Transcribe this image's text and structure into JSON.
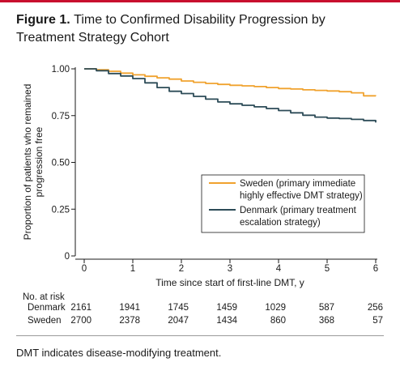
{
  "figure": {
    "title_bold": "Figure 1.",
    "title_rest": "Time to Confirmed Disability Progression by Treatment Strategy Cohort",
    "footnote": "DMT indicates disease-modifying treatment."
  },
  "colors": {
    "sweden": "#f0a22e",
    "denmark": "#2c4b57",
    "accent_rule": "#c8102e"
  },
  "chart_data": {
    "type": "line",
    "title": "Time to Confirmed Disability Progression by Treatment Strategy Cohort",
    "xlabel": "Time since start of first-line DMT, y",
    "ylabel_lines": [
      "Proportion of patients who remained",
      "progression free"
    ],
    "xlim": [
      0,
      6
    ],
    "ylim": [
      0,
      1
    ],
    "x_ticks": [
      "0",
      "1",
      "2",
      "3",
      "4",
      "5",
      "6"
    ],
    "y_ticks": [
      "0",
      "0.25",
      "0.50",
      "0.75",
      "1.00"
    ],
    "legend_position": "right, mid-height",
    "series": [
      {
        "name": "Sweden (primary immediate highly effective DMT strategy)",
        "legend_lines": [
          "Sweden (primary immediate",
          "highly effective DMT strategy)"
        ],
        "color": "#f0a22e",
        "x": [
          0,
          0.25,
          0.5,
          0.75,
          1.0,
          1.25,
          1.5,
          1.75,
          2.0,
          2.25,
          2.5,
          2.75,
          3.0,
          3.25,
          3.5,
          3.75,
          4.0,
          4.25,
          4.5,
          4.75,
          5.0,
          5.25,
          5.5,
          5.75,
          6.0
        ],
        "y": [
          1.0,
          0.995,
          0.987,
          0.977,
          0.968,
          0.96,
          0.952,
          0.945,
          0.935,
          0.928,
          0.922,
          0.917,
          0.912,
          0.909,
          0.905,
          0.9,
          0.895,
          0.892,
          0.888,
          0.885,
          0.882,
          0.878,
          0.872,
          0.856,
          0.855
        ]
      },
      {
        "name": "Denmark (primary treatment escalation strategy)",
        "legend_lines": [
          "Denmark (primary treatment",
          "escalation strategy)"
        ],
        "color": "#2c4b57",
        "x": [
          0,
          0.25,
          0.5,
          0.75,
          1.0,
          1.25,
          1.5,
          1.75,
          2.0,
          2.25,
          2.5,
          2.75,
          3.0,
          3.25,
          3.5,
          3.75,
          4.0,
          4.25,
          4.5,
          4.75,
          5.0,
          5.25,
          5.5,
          5.75,
          6.0
        ],
        "y": [
          1.0,
          0.99,
          0.975,
          0.962,
          0.948,
          0.925,
          0.9,
          0.88,
          0.868,
          0.853,
          0.838,
          0.823,
          0.813,
          0.805,
          0.797,
          0.788,
          0.777,
          0.765,
          0.752,
          0.742,
          0.737,
          0.734,
          0.73,
          0.724,
          0.713
        ]
      }
    ]
  },
  "risk_table": {
    "title": "No. at risk",
    "rows": [
      {
        "label": "Denmark",
        "values": [
          "2161",
          "1941",
          "1745",
          "1459",
          "1029",
          "587",
          "256"
        ]
      },
      {
        "label": "Sweden",
        "values": [
          "2700",
          "2378",
          "2047",
          "1434",
          "860",
          "368",
          "57"
        ]
      }
    ]
  }
}
